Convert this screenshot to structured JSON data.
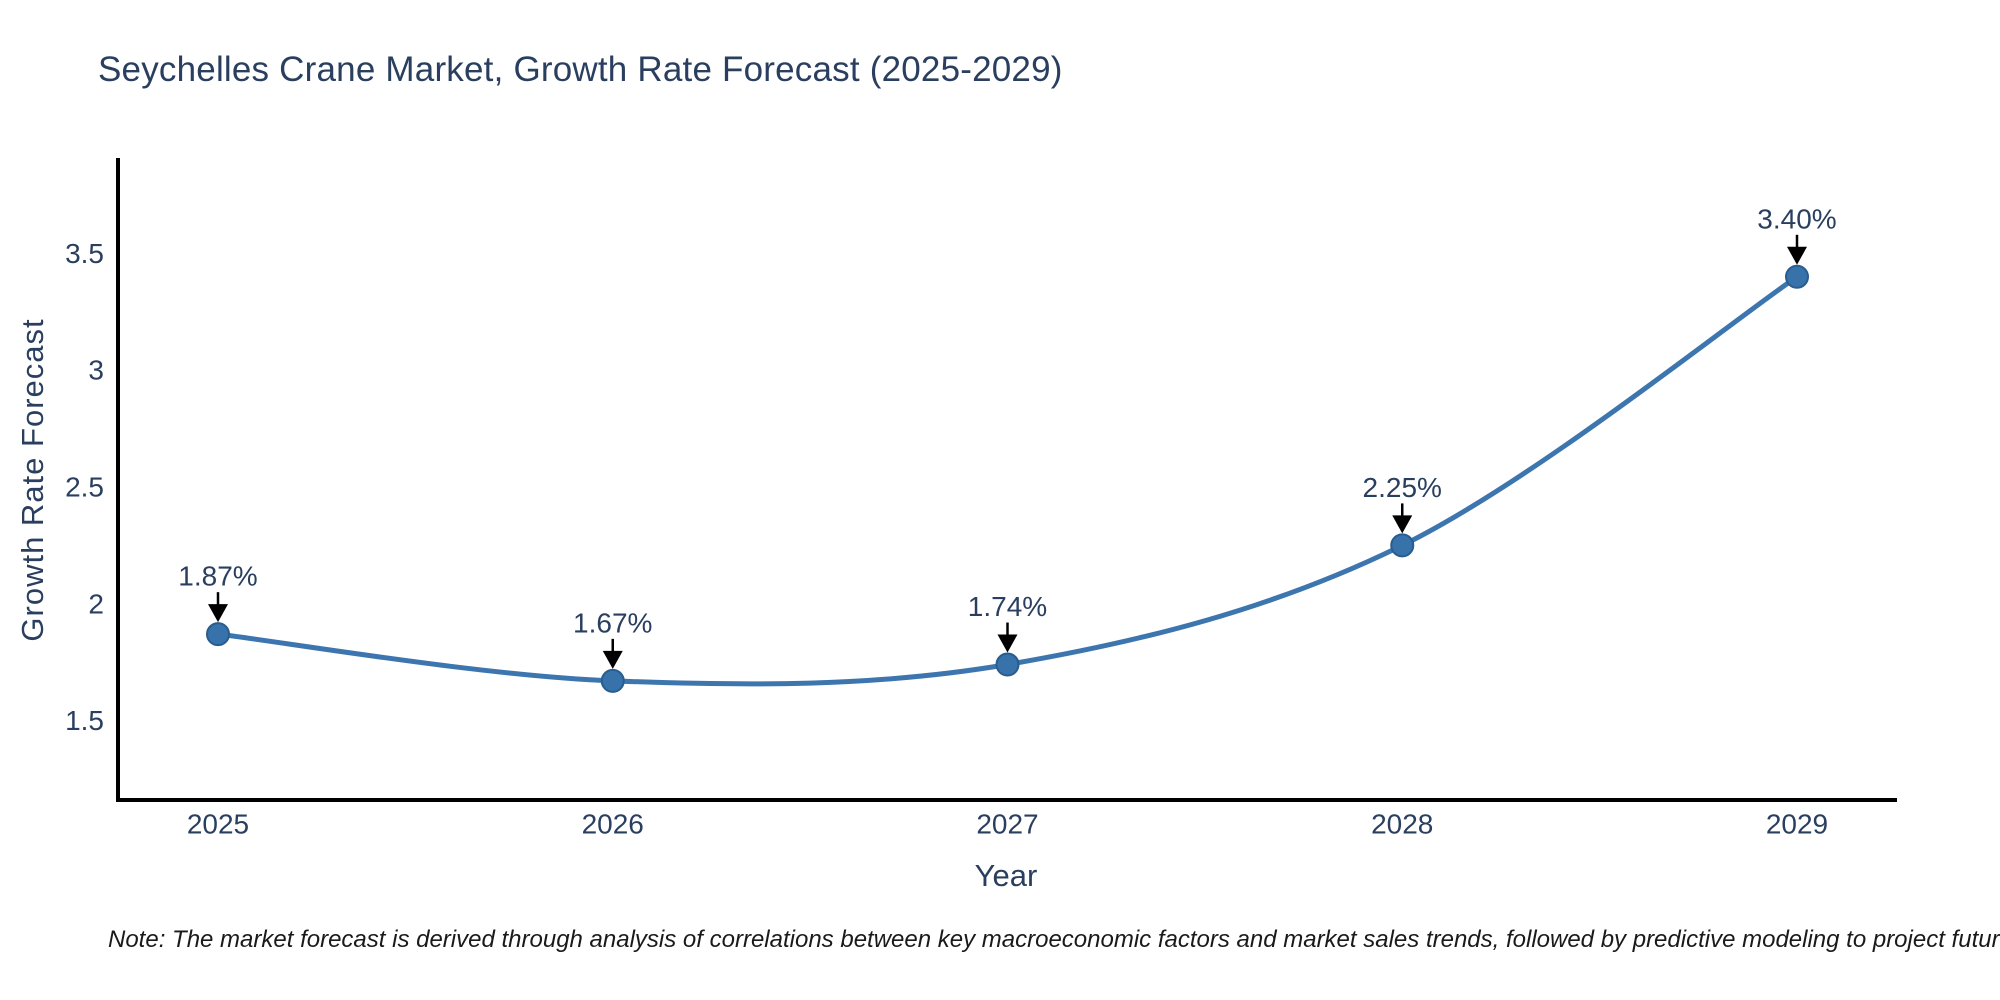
{
  "title": "Seychelles Crane Market, Growth Rate Forecast (2025-2029)",
  "note": "Note: The market forecast is derived through analysis of correlations between key macroeconomic factors and market sales trends, followed by predictive modeling to project future sales",
  "colors": {
    "line": "#3d76af",
    "marker_fill": "#3872ab",
    "marker_edge": "#285d8f",
    "axis": "#000000",
    "text": "#2a3f5f",
    "annotation_text": "#2a3f5f",
    "annotation_arrow": "#000000",
    "note_text": "#1a1a1a",
    "background": "#ffffff"
  },
  "chart_data": {
    "type": "line",
    "title": "Seychelles Crane Market, Growth Rate Forecast (2025-2029)",
    "xlabel": "Year",
    "ylabel": "Growth Rate Forecast",
    "categories": [
      "2025",
      "2026",
      "2027",
      "2028",
      "2029"
    ],
    "values": [
      1.87,
      1.67,
      1.74,
      2.25,
      3.4
    ],
    "point_labels": [
      "1.87%",
      "1.67%",
      "1.74%",
      "2.25%",
      "3.40%"
    ],
    "series_name": "Growth Rate Forecast",
    "yticks": [
      1.5,
      2.0,
      2.5,
      3.0,
      3.5
    ],
    "ytick_labels": [
      "1.5",
      "2",
      "2.5",
      "3",
      "3.5"
    ],
    "ylim": [
      1.16,
      3.9
    ],
    "grid": false,
    "legend": false,
    "line_style": "spline",
    "markers": true,
    "annotations": "black down-arrows from each percentage label to its data point"
  }
}
